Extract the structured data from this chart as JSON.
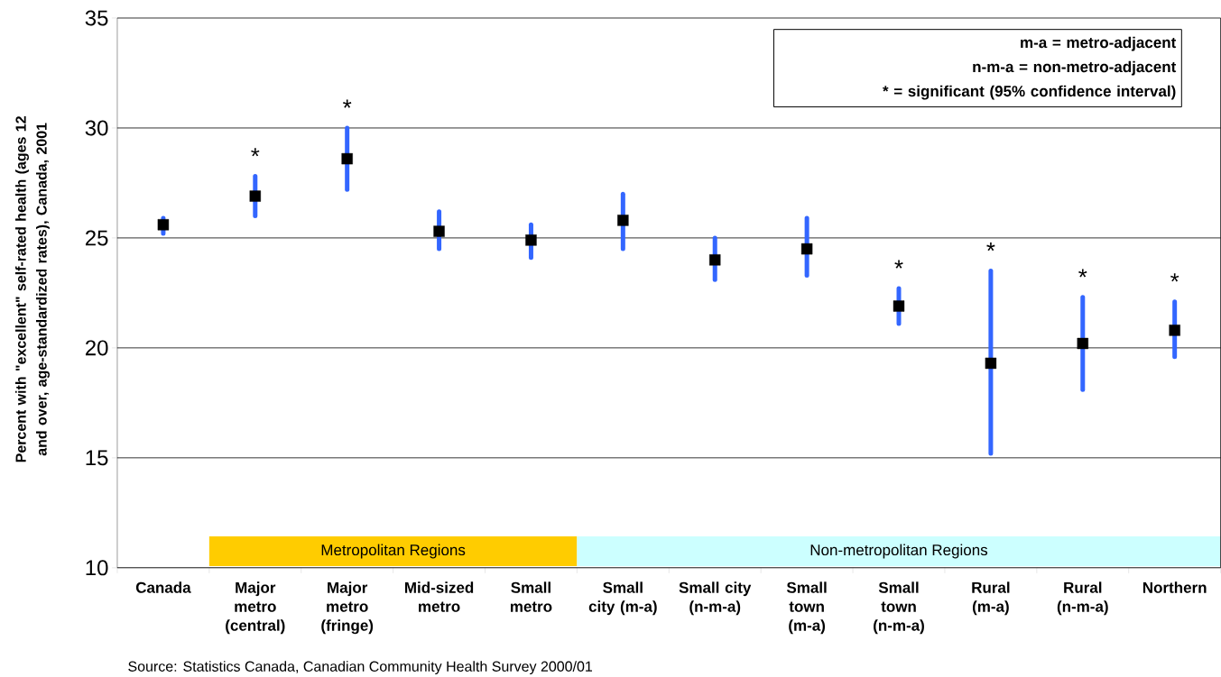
{
  "chart_data": {
    "type": "scatter",
    "ylabel": "Percent with \"excellent\" self-rated health (ages 12 and over, age-standardized rates), Canada, 2001",
    "categories": [
      "Canada",
      "Major metro (central)",
      "Major metro (fringe)",
      "Mid-sized metro",
      "Small metro",
      "Small city (m-a)",
      "Small city (n-m-a)",
      "Small town (m-a)",
      "Small town (n-m-a)",
      "Rural (m-a)",
      "Rural (n-m-a)",
      "Northern"
    ],
    "series": [
      {
        "color": "#000000",
        "values": [
          25.6,
          26.9,
          28.6,
          25.3,
          24.9,
          25.8,
          24.0,
          24.5,
          21.9,
          19.3,
          20.2,
          20.8
        ],
        "errors": [
          [
            25.2,
            25.9
          ],
          [
            26.0,
            27.8
          ],
          [
            27.2,
            30.0
          ],
          [
            24.5,
            26.2
          ],
          [
            24.1,
            25.6
          ],
          [
            24.5,
            27.0
          ],
          [
            23.1,
            25.0
          ],
          [
            23.3,
            25.9
          ],
          [
            21.1,
            22.7
          ],
          [
            15.2,
            23.5
          ],
          [
            18.1,
            22.3
          ],
          [
            19.6,
            22.1
          ]
        ]
      }
    ],
    "marker": "square",
    "ylim": [
      10,
      35
    ],
    "yticks": [
      10,
      15,
      20,
      25,
      30,
      35
    ],
    "grid": "y",
    "annotations": [
      "m-a = metro-adjacent",
      "n-m-a = non-metro-adjacent",
      "* = significant (95% confidence interval)",
      "Metropolitan Regions",
      "Non-metropolitan Regions",
      {
        "text": "*",
        "x": "Major metro (central)",
        "y": 27.8
      },
      {
        "text": "*",
        "x": "Major metro (fringe)",
        "y": 30.0
      },
      {
        "text": "*",
        "x": "Small town (n-m-a)",
        "y": 22.7
      },
      {
        "text": "*",
        "x": "Rural (m-a)",
        "y": 23.5
      },
      {
        "text": "*",
        "x": "Rural (n-m-a)",
        "y": 22.3
      },
      {
        "text": "*",
        "x": "Northern",
        "y": 22.1
      },
      "Source: Statistics Canada, Canadian Community Health Survey 2000/01"
    ]
  }
}
